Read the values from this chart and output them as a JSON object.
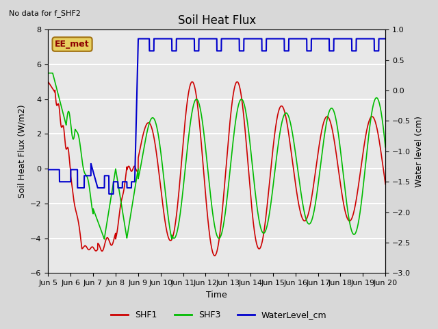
{
  "title": "Soil Heat Flux",
  "note": "No data for f_SHF2",
  "ylabel_left": "Soil Heat Flux (W/m2)",
  "ylabel_right": "Water level (cm)",
  "xlabel": "Time",
  "ylim_left": [
    -6,
    8
  ],
  "ylim_right": [
    -3.0,
    1.0
  ],
  "yticks_left": [
    -6,
    -4,
    -2,
    0,
    2,
    4,
    6,
    8
  ],
  "yticks_right": [
    -3.0,
    -2.5,
    -2.0,
    -1.5,
    -1.0,
    -0.5,
    0.0,
    0.5,
    1.0
  ],
  "xtick_labels": [
    "Jun 5",
    "Jun 6",
    "Jun 7",
    "Jun 8",
    "Jun 9",
    "Jun 10",
    "Jun 11",
    "Jun 12",
    "Jun 13",
    "Jun 14",
    "Jun 15",
    "Jun 16",
    "Jun 17",
    "Jun 18",
    "Jun 19",
    "Jun 20"
  ],
  "bg_color": "#d8d8d8",
  "plot_bg_color": "#e8e8e8",
  "grid_color": "white",
  "annotation_box_text": "EE_met",
  "annotation_box_color": "#e8d060",
  "annotation_box_edge_color": "#a07010",
  "legend_entries": [
    "SHF1",
    "SHF3",
    "WaterLevel_cm"
  ],
  "shf1_color": "#cc0000",
  "shf3_color": "#00bb00",
  "water_color": "#0000cc"
}
